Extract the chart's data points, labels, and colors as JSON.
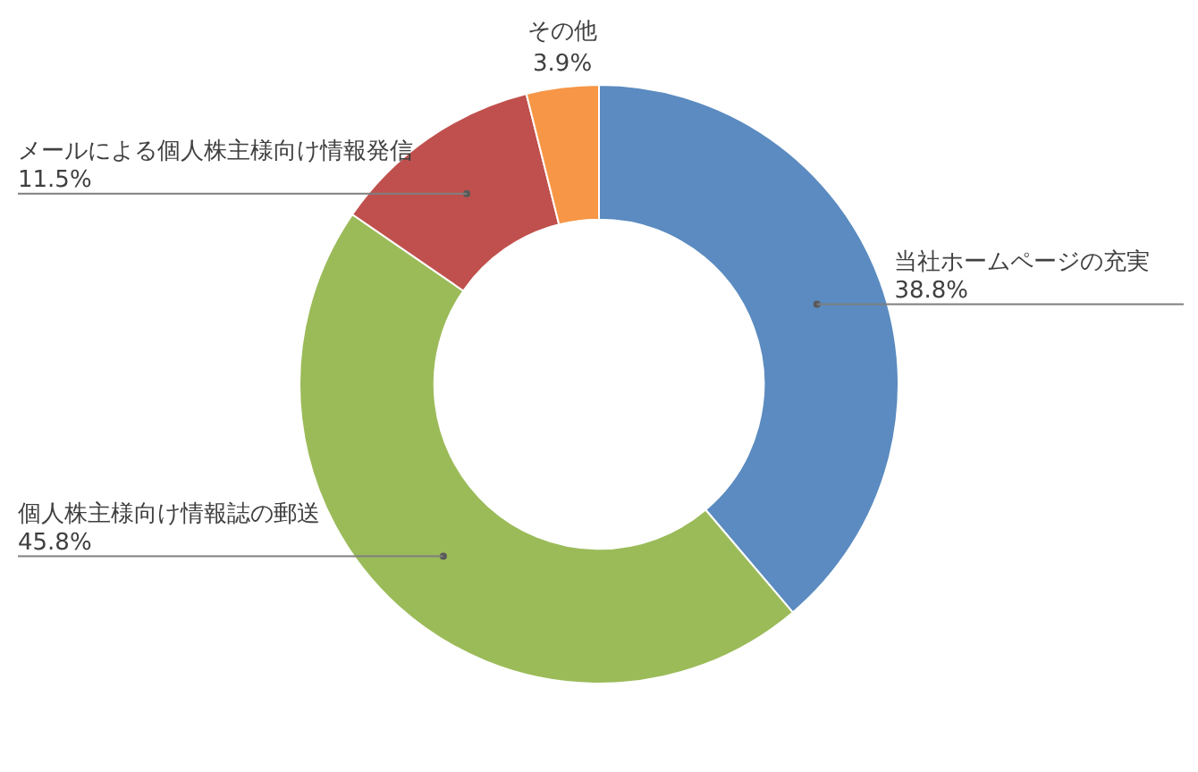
{
  "chart_data": {
    "type": "donut",
    "categories": [
      "当社ホームページの充実",
      "個人株主様向け情報誌の郵送",
      "メールによる個人株主様向け情報発信",
      "その他"
    ],
    "values": [
      38.8,
      45.8,
      11.5,
      3.9
    ],
    "colors": [
      "#5b8bc0",
      "#9bbb59",
      "#c0504d",
      "#f79646"
    ],
    "value_labels": [
      "38.8%",
      "45.8%",
      "11.5%",
      "3.9%"
    ],
    "legend": false
  }
}
